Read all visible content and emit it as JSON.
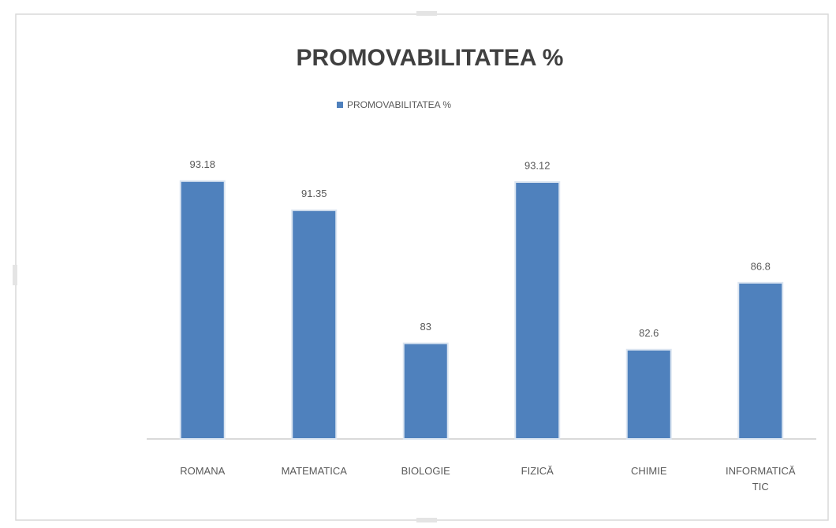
{
  "chart_data": {
    "type": "bar",
    "title": "PROMOVABILITATEA %",
    "legend": "PROMOVABILITATEA %",
    "categories": [
      "ROMANA",
      "MATEMATICA",
      "BIOLOGIE",
      "FIZICĂ",
      "CHIMIE",
      "INFORMATICĂ TIC"
    ],
    "values": [
      93.18,
      91.35,
      83,
      93.12,
      82.6,
      86.8
    ],
    "color": "#4f81bd",
    "ylim": [
      77,
      95
    ]
  }
}
